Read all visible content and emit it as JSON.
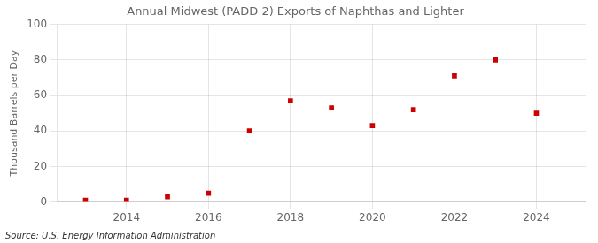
{
  "chart_data": {
    "type": "scatter",
    "title": "Annual Midwest (PADD 2) Exports of Naphthas and Lighter",
    "ylabel": "Thousand Barrels per Day",
    "annotations": [
      "Source: U.S. Energy Information Administration"
    ],
    "x": [
      2013,
      2014,
      2015,
      2016,
      2017,
      2018,
      2019,
      2020,
      2021,
      2022,
      2023,
      2024
    ],
    "values": [
      1,
      1,
      3,
      5,
      40,
      57,
      53,
      43,
      52,
      71,
      80,
      50
    ],
    "color": "#cc0000",
    "marker": "square",
    "xlim": [
      2012.3,
      2025.2
    ],
    "xticks": [
      2014,
      2016,
      2018,
      2020,
      2022,
      2024
    ],
    "ylim": [
      0,
      100
    ],
    "yticks": [
      0,
      20,
      40,
      60,
      80,
      100
    ],
    "grid": true
  }
}
